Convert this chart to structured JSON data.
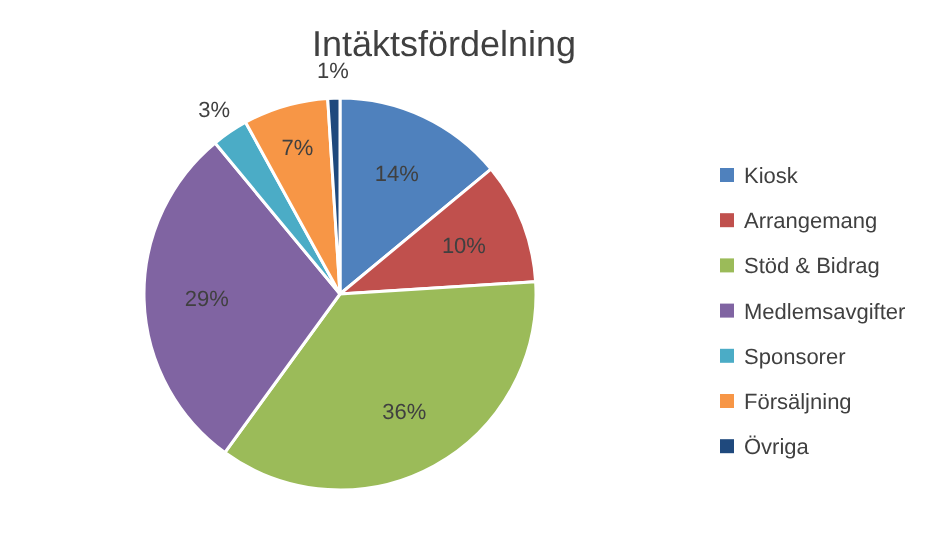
{
  "chart_data": {
    "type": "pie",
    "title": "Intäktsfördelning",
    "categories": [
      "Kiosk",
      "Arrangemang",
      "Stöd & Bidrag",
      "Medlemsavgifter",
      "Sponsorer",
      "Försäljning",
      "Övriga"
    ],
    "values": [
      14,
      10,
      36,
      29,
      3,
      7,
      1
    ],
    "colors": [
      "#4f81bd",
      "#c0504d",
      "#9bbb59",
      "#8064a2",
      "#4bacc6",
      "#f79646",
      "#1f497d"
    ],
    "value_labels": [
      "14%",
      "10%",
      "36%",
      "29%",
      "3%",
      "7%",
      "1%"
    ],
    "legend": "right"
  }
}
